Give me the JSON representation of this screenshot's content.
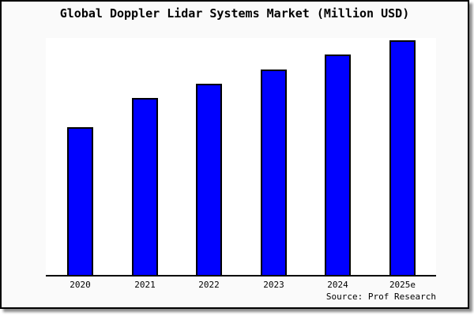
{
  "chart": {
    "title": "Global Doppler Lidar Systems Market (Million USD)",
    "source": "Source: Prof Research"
  },
  "colors": {
    "bar_fill": "#0000FF",
    "bar_border": "#000000",
    "card_background": "#FAFAFA",
    "plot_background": "#FFFFFF",
    "axis_line": "#000000",
    "text": "#000000"
  },
  "chart_data": {
    "type": "bar",
    "title": "Global Doppler Lidar Systems Market (Million USD)",
    "categories": [
      "2020",
      "2021",
      "2022",
      "2023",
      "2024",
      "2025e"
    ],
    "values": [
      62.9,
      75.3,
      81.6,
      87.6,
      94.0,
      100.0
    ],
    "value_note": "no y-axis or data labels shown; values are relative bar heights with tallest bar (2025e) = 100",
    "xlabel": "",
    "ylabel": "",
    "ylim": [
      0,
      101
    ],
    "grid": false,
    "legend_position": "none",
    "y_axis_visible": false,
    "bar_color": "#0000FF",
    "source": "Source: Prof Research"
  }
}
